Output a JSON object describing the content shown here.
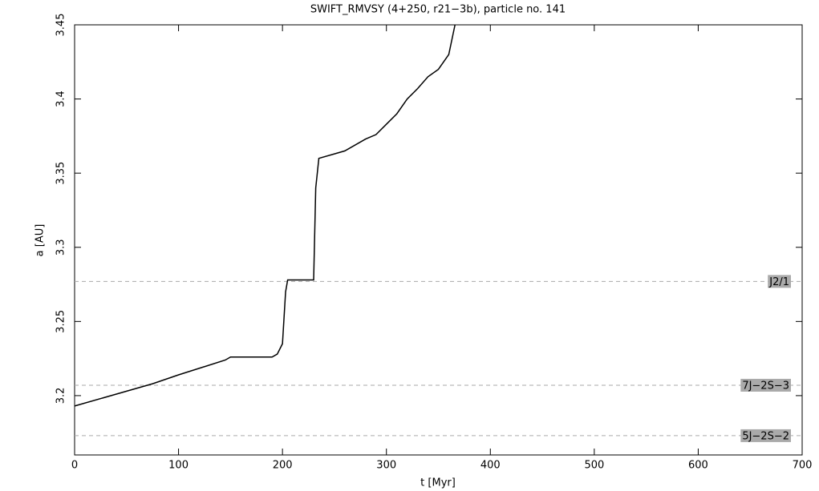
{
  "chart_data": {
    "type": "line",
    "title": "SWIFT_RMVSY (4+250, r21−3b), particle no. 141",
    "x_label": "t [Myr]",
    "y_label": "a [AU]",
    "x": [
      0,
      50,
      75,
      100,
      145,
      150,
      190,
      195,
      200,
      203,
      205,
      230,
      232,
      235,
      250,
      260,
      280,
      290,
      300,
      310,
      320,
      330,
      340,
      350,
      360,
      363,
      366
    ],
    "series": [
      {
        "name": "particle no. 141",
        "color": "#000000",
        "values": [
          3.193,
          3.203,
          3.208,
          3.214,
          3.224,
          3.226,
          3.226,
          3.228,
          3.235,
          3.27,
          3.278,
          3.278,
          3.34,
          3.36,
          3.363,
          3.365,
          3.373,
          3.376,
          3.383,
          3.39,
          3.4,
          3.407,
          3.415,
          3.42,
          3.43,
          3.44,
          3.45
        ]
      }
    ],
    "resonances": [
      {
        "label": "J2/1",
        "value": 3.277
      },
      {
        "label": "7J−2S−3",
        "value": 3.207
      },
      {
        "label": "5J−2S−2",
        "value": 3.173
      }
    ],
    "resonance_color": "#aaaaaa",
    "xlim": [
      0,
      700
    ],
    "ylim": [
      3.16,
      3.45
    ],
    "xticks": [
      0,
      100,
      200,
      300,
      400,
      500,
      600,
      700
    ],
    "yticks": [
      3.2,
      3.25,
      3.3,
      3.35,
      3.4,
      3.45
    ]
  }
}
